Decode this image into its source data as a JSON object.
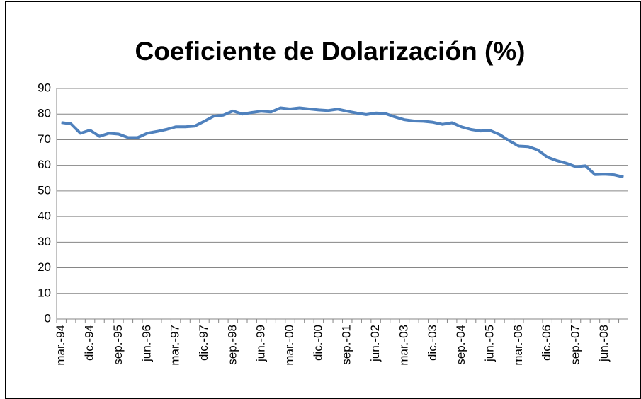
{
  "chart_data": {
    "type": "line",
    "title": "Coeficiente de Dolarización (%)",
    "categories": [
      "mar.-94",
      null,
      null,
      "dic.-94",
      null,
      null,
      "sep.-95",
      null,
      null,
      "jun.-96",
      null,
      null,
      "mar.-97",
      null,
      null,
      "dic.-97",
      null,
      null,
      "sep.-98",
      null,
      null,
      "jun.-99",
      null,
      null,
      "mar.-00",
      null,
      null,
      "dic.-00",
      null,
      null,
      "sep.-01",
      null,
      null,
      "jun.-02",
      null,
      null,
      "mar.-03",
      null,
      null,
      "dic.-03",
      null,
      null,
      "sep.-04",
      null,
      null,
      "jun.-05",
      null,
      null,
      "mar.-06",
      null,
      null,
      "dic.-06",
      null,
      null,
      "sep.-07",
      null,
      null,
      "jun.-08",
      null,
      null
    ],
    "values": [
      76.7,
      76.2,
      72.5,
      73.7,
      71.3,
      72.5,
      72.2,
      70.8,
      70.8,
      72.5,
      73.2,
      74.0,
      75.0,
      75.0,
      75.3,
      77.2,
      79.2,
      79.6,
      81.2,
      80.0,
      80.6,
      81.1,
      80.8,
      82.4,
      82.0,
      82.4,
      82.0,
      81.6,
      81.4,
      81.9,
      81.1,
      80.4,
      79.8,
      80.4,
      80.2,
      78.9,
      77.8,
      77.3,
      77.2,
      76.8,
      76.0,
      76.6,
      75.0,
      74.0,
      73.4,
      73.6,
      72.0,
      69.6,
      67.5,
      67.3,
      66.0,
      63.2,
      61.8,
      60.8,
      59.4,
      59.8,
      56.4,
      56.5,
      56.3,
      55.4
    ],
    "color": "#4f81bd",
    "ylim": [
      0,
      90
    ],
    "yticks": [
      0,
      10,
      20,
      30,
      40,
      50,
      60,
      70,
      80,
      90
    ],
    "grid": true
  }
}
